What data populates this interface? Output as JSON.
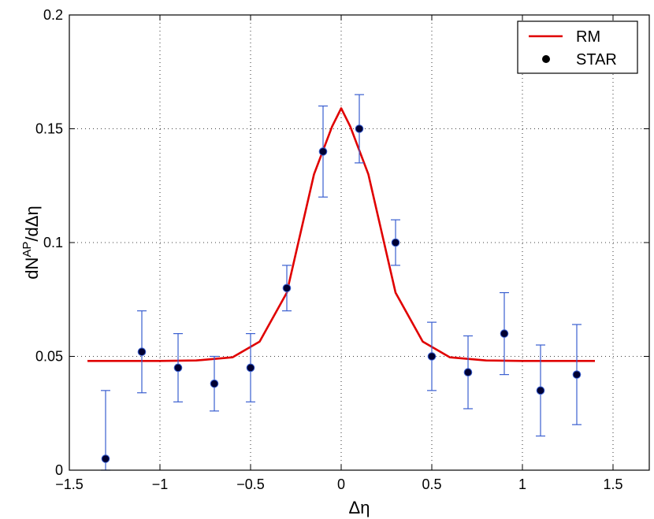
{
  "chart_data": {
    "type": "line",
    "xlabel": "Δη",
    "ylabel_main": "dN",
    "ylabel_sup": "AP",
    "ylabel_tail": "/dΔη",
    "xlim": [
      -1.5,
      1.7
    ],
    "ylim": [
      0,
      0.2
    ],
    "xticks": [
      -1.5,
      -1,
      -0.5,
      0,
      0.5,
      1,
      1.5
    ],
    "xtick_labels": [
      "−1.5",
      "−1",
      "−0.5",
      "0",
      "0.5",
      "1",
      "1.5"
    ],
    "yticks": [
      0,
      0.05,
      0.1,
      0.15,
      0.2
    ],
    "ytick_labels": [
      "0",
      "0.05",
      "0.1",
      "0.15",
      "0.2"
    ],
    "grid": true,
    "legend_position": "top-right",
    "series": [
      {
        "name": "RM",
        "kind": "line",
        "color": "#e00000",
        "x": [
          -1.4,
          -1.2,
          -1.0,
          -0.8,
          -0.6,
          -0.45,
          -0.3,
          -0.15,
          -0.05,
          0.0,
          0.05,
          0.15,
          0.3,
          0.45,
          0.6,
          0.8,
          1.0,
          1.2,
          1.4
        ],
        "y": [
          0.048,
          0.048,
          0.048,
          0.0482,
          0.0496,
          0.0565,
          0.078,
          0.13,
          0.151,
          0.159,
          0.151,
          0.13,
          0.078,
          0.0565,
          0.0496,
          0.0482,
          0.048,
          0.048,
          0.048
        ]
      },
      {
        "name": "STAR",
        "kind": "errorbar",
        "marker_color": "#000033",
        "error_color": "#3a5fd0",
        "x": [
          -1.3,
          -1.1,
          -0.9,
          -0.7,
          -0.5,
          -0.3,
          -0.1,
          0.1,
          0.3,
          0.5,
          0.7,
          0.9,
          1.1,
          1.3
        ],
        "y": [
          0.005,
          0.052,
          0.045,
          0.038,
          0.045,
          0.08,
          0.14,
          0.15,
          0.1,
          0.05,
          0.043,
          0.06,
          0.035,
          0.042
        ],
        "yerr_low": [
          0.005,
          0.018,
          0.015,
          0.012,
          0.015,
          0.01,
          0.02,
          0.015,
          0.01,
          0.015,
          0.016,
          0.018,
          0.02,
          0.022
        ],
        "yerr_high": [
          0.03,
          0.018,
          0.015,
          0.012,
          0.015,
          0.01,
          0.02,
          0.015,
          0.01,
          0.015,
          0.016,
          0.018,
          0.02,
          0.022
        ]
      }
    ]
  }
}
